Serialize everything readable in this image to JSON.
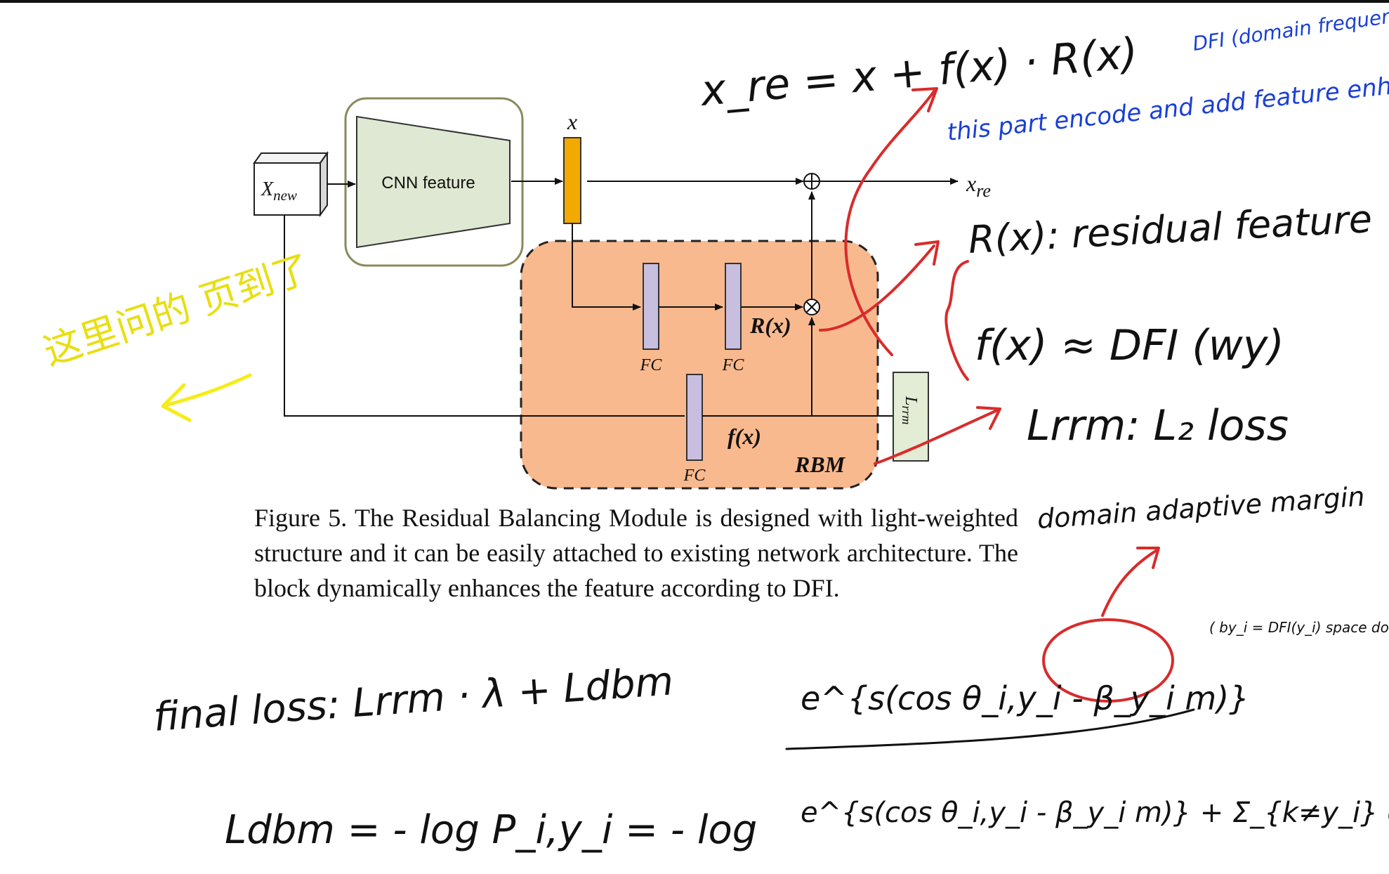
{
  "diagram": {
    "input_label": "X",
    "input_sub": "new",
    "cnn_label": "CNN feature",
    "x_label": "x",
    "output_label": "x",
    "output_sub": "re",
    "fc_label": "FC",
    "r_label": "R(x)",
    "f_label": "f(x)",
    "rbm_label": "RBM",
    "loss_label": "L",
    "loss_sub": "rrm",
    "plus_symbol": "⊕",
    "times_symbol": "⊗"
  },
  "caption": "Figure 5. The Residual Balancing Module is designed with light-weighted structure and it can be easily attached to existing network architecture. The block dynamically enhances the feature according to DFI.",
  "annotations": {
    "eq_xre": "x_re = x + f(x) · R(x)",
    "blue_note_1": "this part encode and add feature enhancement",
    "blue_note_2": "DFI (domain frequency indicator)",
    "note_rx": "R(x): residual feature",
    "note_fx": "f(x) ≈ DFI (wy)",
    "note_lrrm": "Lrrm: L₂ loss",
    "note_domain": "domain adaptive margin",
    "note_margin_detail": "( by_i = DFI(y_i) space domain margin ...",
    "yellow_note": "这里问的 页到了",
    "final_loss": "final loss: Lrrm · λ + Ldbm",
    "ldbm_lhs": "Ldbm = - log P_i,y_i = - log",
    "numerator": "e^{s(cos θ_i,y_i - β_y_i m)}",
    "denominator": "e^{s(cos θ_i,y_i - β_y_i m)} + Σ_{k≠y_i} e^{s cos θ_i,k}"
  },
  "colors": {
    "cnn_fill": "#dfe8d2",
    "cnn_border": "#8a8a5a",
    "x_bar": "#f2a900",
    "rbm_fill": "#f9b98e",
    "fc_fill": "#c8bedf",
    "loss_fill": "#e3ecd4",
    "ink_black": "#111111",
    "ink_blue": "#1a3fd6",
    "ink_red": "#d92b2b",
    "ink_yellow": "#f5ec1a"
  }
}
